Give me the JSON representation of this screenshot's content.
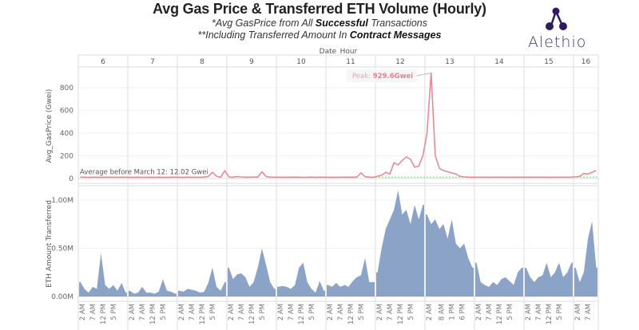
{
  "header": {
    "title": "Avg Gas Price & Transferred ETH Volume (Hourly)",
    "subtitle1_pre": "*Avg GasPrice from All ",
    "subtitle1_bold": "Successful",
    "subtitle1_post": " Transactions",
    "subtitle2_pre": "**Including Transferred Amount In ",
    "subtitle2_bold": "Contract Messages",
    "logo_text": "Alethio",
    "logo_color": "#2d1b5e"
  },
  "chart_data": [
    {
      "type": "line",
      "panel": "top",
      "xlabel": "Date_Hour",
      "ylabel": "Avg_GasPrice (Gwei)",
      "ylim": [
        0,
        1000
      ],
      "yticks": [
        "0",
        "200",
        "400",
        "600",
        "800"
      ],
      "ytick_values": [
        0,
        200,
        400,
        600,
        800
      ],
      "color": "#e88a96",
      "grid": true,
      "days": [
        {
          "day": "6",
          "values": [
            12,
            12,
            11,
            12,
            12,
            11,
            12,
            12,
            11,
            12,
            12,
            12
          ]
        },
        {
          "day": "7",
          "values": [
            11,
            11,
            12,
            11,
            11,
            12,
            11,
            12,
            11,
            11,
            12,
            12
          ]
        },
        {
          "day": "8",
          "values": [
            11,
            11,
            12,
            12,
            11,
            12,
            13,
            18,
            55,
            20,
            12,
            70
          ]
        },
        {
          "day": "9",
          "values": [
            14,
            12,
            18,
            14,
            12,
            12,
            14,
            13,
            60,
            18,
            13,
            12
          ]
        },
        {
          "day": "10",
          "values": [
            12,
            12,
            11,
            12,
            13,
            12,
            11,
            12,
            12,
            11,
            12,
            12
          ]
        },
        {
          "day": "11",
          "values": [
            11,
            12,
            11,
            12,
            12,
            12,
            13,
            12,
            50,
            16,
            13,
            12
          ]
        },
        {
          "day": "12",
          "values": [
            20,
            30,
            55,
            40,
            140,
            120,
            160,
            190,
            170,
            100,
            110,
            200
          ]
        },
        {
          "day": "13",
          "values": [
            400,
            929.6,
            200,
            90,
            70,
            60,
            50,
            40,
            20,
            15,
            13,
            12
          ]
        },
        {
          "day": "14",
          "values": [
            12,
            12,
            12,
            11,
            12,
            12,
            12,
            12,
            11,
            12,
            12,
            12
          ]
        },
        {
          "day": "15",
          "values": [
            12,
            12,
            12,
            12,
            12,
            12,
            11,
            12,
            12,
            12,
            12,
            13
          ]
        },
        {
          "day": "16",
          "values": [
            15,
            20,
            45,
            40,
            55,
            70
          ]
        }
      ],
      "reference_line": {
        "label": "Average before March 12: 12.02 Gwei",
        "value": 12.02,
        "color": "#6fcf6f"
      },
      "annotation": {
        "prefix": "Peak: ",
        "value_text": "929.6Gwei",
        "value": 929.6,
        "day": "13"
      }
    },
    {
      "type": "area",
      "panel": "bottom",
      "ylabel": "ETH Amount Transferred",
      "ylim": [
        0,
        1150000
      ],
      "yticks": [
        "0.00M",
        "0.50M",
        "1.00M"
      ],
      "ytick_values": [
        0,
        500000,
        1000000
      ],
      "color": "#8aa3c6",
      "grid": true,
      "days": [
        {
          "day": "6",
          "values": [
            150000,
            80000,
            40000,
            100000,
            80000,
            450000,
            120000,
            80000,
            120000,
            60000,
            140000,
            40000
          ]
        },
        {
          "day": "7",
          "values": [
            60000,
            30000,
            40000,
            100000,
            40000,
            40000,
            30000,
            50000,
            180000,
            60000,
            50000,
            30000
          ]
        },
        {
          "day": "8",
          "values": [
            60000,
            50000,
            80000,
            70000,
            60000,
            40000,
            50000,
            140000,
            300000,
            100000,
            60000,
            150000
          ]
        },
        {
          "day": "9",
          "values": [
            300000,
            180000,
            230000,
            240000,
            200000,
            100000,
            150000,
            300000,
            500000,
            330000,
            150000,
            80000
          ]
        },
        {
          "day": "10",
          "values": [
            100000,
            110000,
            100000,
            80000,
            120000,
            300000,
            350000,
            150000,
            80000,
            40000,
            160000,
            60000
          ]
        },
        {
          "day": "11",
          "values": [
            120000,
            100000,
            140000,
            100000,
            120000,
            100000,
            160000,
            200000,
            220000,
            400000,
            150000,
            150000
          ]
        },
        {
          "day": "12",
          "values": [
            250000,
            500000,
            700000,
            800000,
            900000,
            1100000,
            850000,
            900000,
            750000,
            950000,
            800000,
            950000
          ]
        },
        {
          "day": "13",
          "values": [
            850000,
            750000,
            800000,
            700000,
            750000,
            600000,
            800000,
            550000,
            500000,
            550000,
            400000,
            300000
          ]
        },
        {
          "day": "14",
          "values": [
            350000,
            150000,
            120000,
            100000,
            150000,
            120000,
            180000,
            200000,
            160000,
            120000,
            250000,
            300000
          ]
        },
        {
          "day": "15",
          "values": [
            300000,
            200000,
            150000,
            200000,
            220000,
            350000,
            200000,
            250000,
            350000,
            200000,
            250000,
            350000
          ]
        },
        {
          "day": "16",
          "values": [
            300000,
            150000,
            250000,
            600000,
            780000,
            300000
          ]
        }
      ]
    }
  ],
  "x_axis": {
    "title": "Date_Hour",
    "days": [
      {
        "day": "6",
        "hours": [
          "2 AM",
          "7 AM",
          "12 PM",
          "5 PM"
        ]
      },
      {
        "day": "7",
        "hours": [
          "2 AM",
          "7 AM",
          "12 PM",
          "5 PM"
        ]
      },
      {
        "day": "8",
        "hours": [
          "2 AM",
          "7 AM",
          "12 PM",
          "5 PM"
        ]
      },
      {
        "day": "9",
        "hours": [
          "2 AM",
          "7 AM",
          "12 PM",
          "5 PM"
        ]
      },
      {
        "day": "10",
        "hours": [
          "2 AM",
          "7 AM",
          "12 PM",
          "5 PM"
        ]
      },
      {
        "day": "11",
        "hours": [
          "2 AM",
          "7 AM",
          "12 PM",
          "5 PM"
        ]
      },
      {
        "day": "12",
        "hours": [
          "2 AM",
          "7 AM",
          "12 PM",
          "5 PM"
        ]
      },
      {
        "day": "13",
        "hours": [
          "2 AM",
          "8 AM",
          "1 PM",
          "6 PM"
        ]
      },
      {
        "day": "14",
        "hours": [
          "2 AM",
          "7 AM",
          "12 PM",
          "5 PM"
        ]
      },
      {
        "day": "15",
        "hours": [
          "2 AM",
          "7 AM",
          "12 PM",
          "5 PM"
        ]
      },
      {
        "day": "16",
        "hours": [
          "2 AM",
          "7 AM"
        ]
      }
    ]
  }
}
